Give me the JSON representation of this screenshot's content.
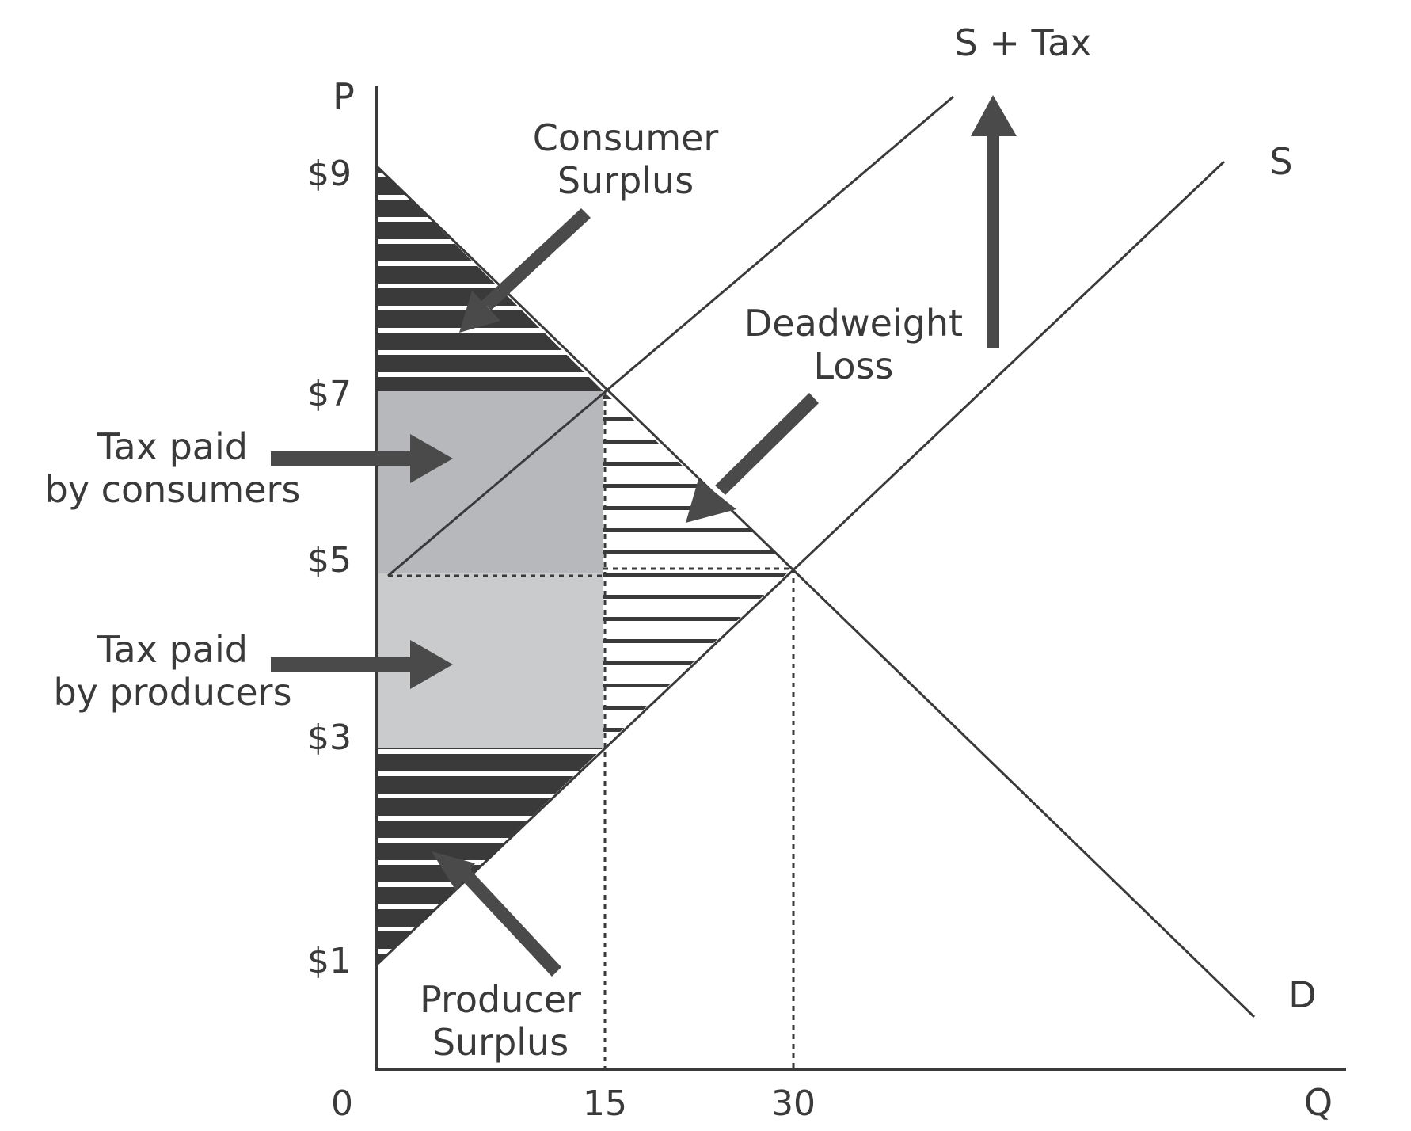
{
  "axes": {
    "y_label": "P",
    "x_label": "Q",
    "origin_label": "0",
    "y_ticks": [
      {
        "value": 9,
        "label": "$9"
      },
      {
        "value": 7,
        "label": "$7"
      },
      {
        "value": 5,
        "label": "$5"
      },
      {
        "value": 3,
        "label": "$3"
      },
      {
        "value": 1,
        "label": "$1"
      }
    ],
    "x_ticks": [
      {
        "value": 15,
        "label": "15"
      },
      {
        "value": 30,
        "label": "30"
      }
    ]
  },
  "curves": {
    "demand": {
      "label": "D",
      "p_intercept": 9,
      "slope": -0.1333
    },
    "supply": {
      "label": "S",
      "p_intercept": 1,
      "slope": 0.1333
    },
    "supply_tax": {
      "label": "S + Tax",
      "p_intercept": 5,
      "slope": 0.1333
    }
  },
  "regions": {
    "consumer_surplus": {
      "line1": "Consumer",
      "line2": "Surplus"
    },
    "deadweight_loss": {
      "line1": "Deadweight",
      "line2": "Loss"
    },
    "tax_consumers": {
      "line1": "Tax paid",
      "line2": "by consumers"
    },
    "tax_producers": {
      "line1": "Tax paid",
      "line2": "by producers"
    },
    "producer_surplus": {
      "line1": "Producer",
      "line2": "Surplus"
    }
  },
  "colors": {
    "ink": "#3a3a3a",
    "arrow": "#4a4a4a",
    "tax_consumers_fill": "#b7b8bb",
    "tax_producers_fill": "#cacbcd",
    "hatch_dark": "#3a3a3a",
    "hatch_light": "#ffffff"
  }
}
